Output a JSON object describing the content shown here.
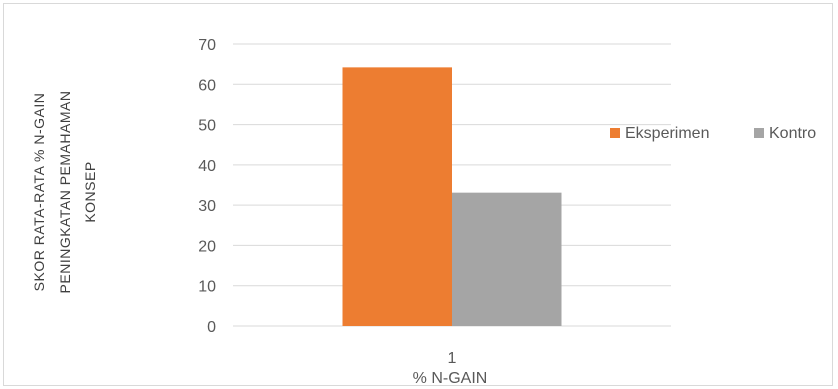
{
  "chart_data": {
    "type": "bar",
    "categories": [
      "1"
    ],
    "series": [
      {
        "name": "Eksperimen",
        "values": [
          64.2
        ],
        "color": "#ED7D31"
      },
      {
        "name": "Kontrol",
        "values": [
          33.1
        ],
        "color": "#A5A5A5"
      }
    ],
    "legend_labels": [
      "Eksperimen",
      "Kontro"
    ],
    "xlabel": "% N-GAIN",
    "ylabel_lines": [
      "SKOR RATA-RATA % N-GAIN",
      "PENINGKATAN PEMAHAMAN",
      "KONSEP"
    ],
    "ylim": [
      0,
      70
    ],
    "yticks": [
      0,
      10,
      20,
      30,
      40,
      50,
      60,
      70
    ],
    "grid": true,
    "legend_position": "right",
    "gridline_color": "#D9D9D9"
  }
}
